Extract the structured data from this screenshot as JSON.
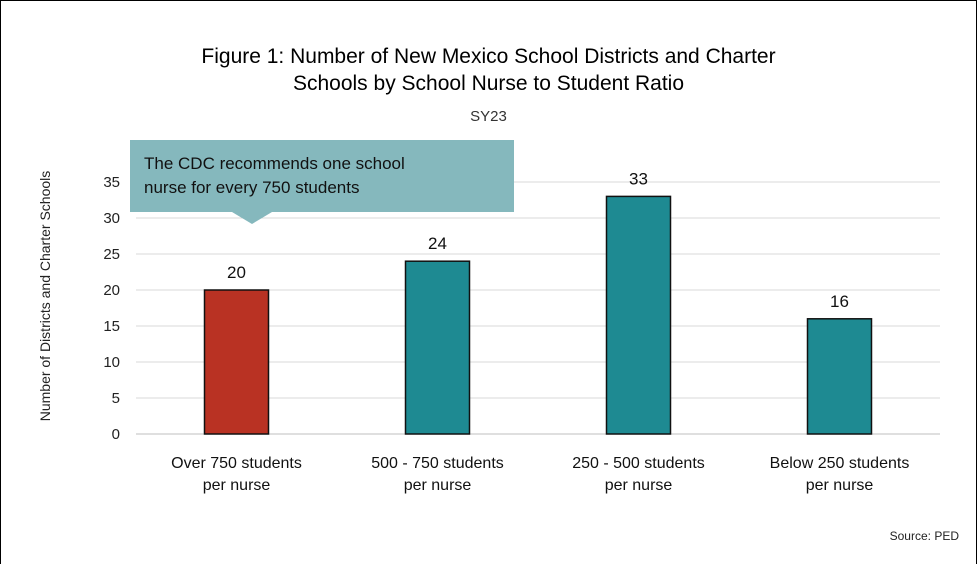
{
  "chart_data": {
    "type": "bar",
    "title_lines": [
      "Figure 1: Number of New Mexico School Districts and Charter",
      "Schools by School Nurse to Student Ratio"
    ],
    "subtitle": "SY23",
    "ylabel": "Number of  Districts and Charter Schools",
    "xlabel": "",
    "ylim": [
      0,
      35
    ],
    "yticks": [
      0,
      5,
      10,
      15,
      20,
      25,
      30,
      35
    ],
    "grid": true,
    "categories": [
      [
        "Over 750 students",
        "per nurse"
      ],
      [
        "500 - 750 students",
        "per nurse"
      ],
      [
        "250 - 500 students",
        "per nurse"
      ],
      [
        "Below 250 students",
        "per nurse"
      ]
    ],
    "values": [
      20,
      24,
      33,
      16
    ],
    "data_labels": [
      "20",
      "24",
      "33",
      "16"
    ],
    "colors": [
      "#b93223",
      "#1e8a92",
      "#1e8a92",
      "#1e8a92"
    ],
    "annotation": {
      "lines": [
        "The CDC recommends one school",
        "nurse for every 750 students"
      ],
      "color": "#85b8bd"
    },
    "source": "Source: PED"
  }
}
